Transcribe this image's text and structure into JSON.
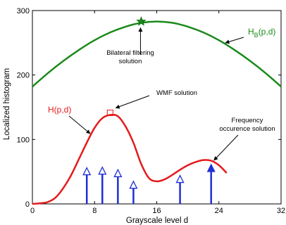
{
  "chart_data": {
    "type": "line",
    "xlabel": "Grayscale level d",
    "ylabel": "Localized histogram",
    "xlim": [
      0,
      32
    ],
    "ylim": [
      0,
      300
    ],
    "xticks": [
      "0",
      "8",
      "16",
      "24",
      "32"
    ],
    "yticks": [
      "0",
      "100",
      "200",
      "300"
    ],
    "grid": false,
    "colors": {
      "h": "#e41a1c",
      "hb": "#1a8a1a",
      "stem": "#1f2fd6"
    },
    "series": [
      {
        "name": "H(p,d)",
        "label_text": "H(p,d)",
        "x": [
          0,
          1,
          2,
          3,
          4,
          5,
          6,
          7,
          8,
          9,
          10,
          11,
          12,
          13,
          14,
          15,
          16,
          17,
          18,
          19,
          20,
          21,
          22,
          23,
          24,
          25
        ],
        "y": [
          0,
          1,
          3,
          10,
          25,
          45,
          70,
          95,
          118,
          133,
          138,
          136,
          120,
          95,
          62,
          40,
          35,
          38,
          45,
          53,
          60,
          65,
          68,
          67,
          60,
          48
        ]
      },
      {
        "name": "H_B(p,d)",
        "label_main": "H",
        "label_sub": "B",
        "label_tail": "(p,d)",
        "x": [
          0,
          2,
          4,
          6,
          8,
          10,
          12,
          14,
          16,
          18,
          20,
          22,
          24,
          26,
          28,
          30,
          32
        ],
        "y": [
          182,
          203,
          222,
          239,
          254,
          266,
          275,
          281,
          283,
          281,
          275,
          266,
          254,
          239,
          222,
          203,
          182
        ]
      },
      {
        "name": "stems",
        "type": "stem",
        "x": [
          7,
          9,
          11,
          13,
          19,
          23
        ],
        "y": [
          55,
          56,
          52,
          34,
          43,
          60
        ],
        "filled": [
          false,
          false,
          false,
          false,
          false,
          true
        ]
      }
    ],
    "annotations": [
      {
        "text_lines": [
          "Bilateral filtering",
          "solution"
        ],
        "point": [
          14,
          283
        ],
        "marker": "star"
      },
      {
        "text_lines": [
          "WMF solution"
        ],
        "point": [
          10,
          138
        ],
        "marker": "square"
      },
      {
        "text_lines": [
          "Frequency",
          "occurence solution"
        ],
        "point": [
          23,
          60
        ],
        "marker": "none"
      }
    ]
  }
}
